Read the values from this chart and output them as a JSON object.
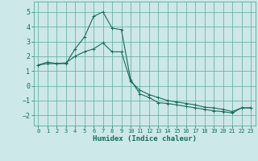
{
  "xlabel": "Humidex (Indice chaleur)",
  "xlim": [
    -0.5,
    23.5
  ],
  "ylim": [
    -2.7,
    5.7
  ],
  "xticks": [
    0,
    1,
    2,
    3,
    4,
    5,
    6,
    7,
    8,
    9,
    10,
    11,
    12,
    13,
    14,
    15,
    16,
    17,
    18,
    19,
    20,
    21,
    22,
    23
  ],
  "yticks": [
    -2,
    -1,
    0,
    1,
    2,
    3,
    4,
    5
  ],
  "bg_color": "#cce8e8",
  "grid_color": "#5aaa96",
  "line_color": "#1a6a5a",
  "line1_x": [
    0,
    1,
    2,
    3,
    4,
    5,
    6,
    7,
    8,
    9,
    10,
    11,
    12,
    13,
    14,
    15,
    16,
    17,
    18,
    19,
    20,
    21,
    22,
    23
  ],
  "line1_y": [
    1.4,
    1.6,
    1.5,
    1.5,
    2.5,
    3.3,
    4.7,
    5.0,
    3.9,
    3.8,
    0.4,
    -0.55,
    -0.8,
    -1.15,
    -1.2,
    -1.3,
    -1.4,
    -1.5,
    -1.6,
    -1.7,
    -1.75,
    -1.85,
    -1.5,
    -1.5
  ],
  "line2_x": [
    0,
    1,
    2,
    3,
    4,
    5,
    6,
    7,
    8,
    9,
    10,
    11,
    12,
    13,
    14,
    15,
    16,
    17,
    18,
    19,
    20,
    21,
    22,
    23
  ],
  "line2_y": [
    1.4,
    1.5,
    1.5,
    1.55,
    2.0,
    2.3,
    2.5,
    2.9,
    2.3,
    2.3,
    0.3,
    -0.3,
    -0.6,
    -0.8,
    -1.0,
    -1.1,
    -1.2,
    -1.3,
    -1.45,
    -1.5,
    -1.6,
    -1.75,
    -1.5,
    -1.5
  ]
}
